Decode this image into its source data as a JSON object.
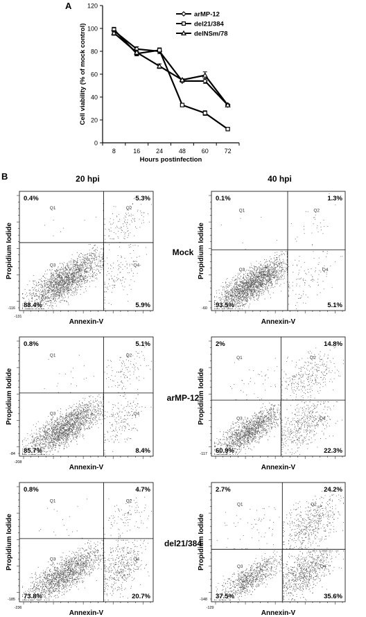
{
  "panel_a_label": "A",
  "panel_b_label": "B",
  "chart_data": [
    {
      "type": "line",
      "panel": "A",
      "title": "",
      "xlabel": "Hours postinfection",
      "ylabel": "Cell viability (% of mock control)",
      "categories": [
        "8",
        "16",
        "24",
        "48",
        "60",
        "72"
      ],
      "ylim": [
        0,
        120
      ],
      "yticks": [
        0,
        20,
        40,
        60,
        80,
        100,
        120
      ],
      "legend_position": "top-right",
      "series": [
        {
          "name": "arMP-12",
          "marker": "diamond",
          "values": [
            98,
            82,
            80,
            54,
            54,
            33
          ],
          "errors": [
            2,
            2,
            2,
            1,
            2,
            1
          ]
        },
        {
          "name": "del21/384",
          "marker": "square",
          "values": [
            99,
            78,
            81,
            33,
            26,
            12
          ],
          "errors": [
            2,
            2,
            2,
            1,
            2,
            1
          ]
        },
        {
          "name": "delNSm/78",
          "marker": "triangle",
          "values": [
            96,
            79,
            67,
            55,
            59,
            33
          ],
          "errors": [
            2,
            2,
            2,
            1,
            3,
            1
          ]
        }
      ]
    },
    {
      "type": "scatter",
      "panel": "B",
      "description_columns": [
        "20 hpi",
        "40 hpi"
      ],
      "row_labels": [
        "Mock",
        "arMP-12",
        "del21/384"
      ],
      "xlabel": "Annexin-V",
      "ylabel": "Propidium Iodide",
      "quadrant_names": [
        "Q1",
        "Q2",
        "Q3",
        "Q4"
      ],
      "plots": [
        {
          "row": "Mock",
          "column": "20 hpi",
          "quadrant_percent": {
            "Q1": "0.4%",
            "Q2": "5.3%",
            "Q3": "88.4%",
            "Q4": "5.9%"
          },
          "xmin_label": "-131",
          "ymin_label": "-116"
        },
        {
          "row": "Mock",
          "column": "40 hpi",
          "quadrant_percent": {
            "Q1": "0.1%",
            "Q2": "1.3%",
            "Q3": "93.5%",
            "Q4": "5.1%"
          },
          "xmin_label": "",
          "ymin_label": "-60"
        },
        {
          "row": "arMP-12",
          "column": "20 hpi",
          "quadrant_percent": {
            "Q1": "0.8%",
            "Q2": "5.1%",
            "Q3": "85.7%",
            "Q4": "8.4%"
          },
          "xmin_label": "-208",
          "ymin_label": "-84"
        },
        {
          "row": "arMP-12",
          "column": "40 hpi",
          "quadrant_percent": {
            "Q1": "2%",
            "Q2": "14.8%",
            "Q3": "60.9%",
            "Q4": "22.3%"
          },
          "xmin_label": "",
          "ymin_label": "-117"
        },
        {
          "row": "del21/384",
          "column": "20 hpi",
          "quadrant_percent": {
            "Q1": "0.8%",
            "Q2": "4.7%",
            "Q3": "73.8%",
            "Q4": "20.7%"
          },
          "xmin_label": "-236",
          "ymin_label": "-185"
        },
        {
          "row": "del21/384",
          "column": "40 hpi",
          "quadrant_percent": {
            "Q1": "2.7%",
            "Q2": "24.2%",
            "Q3": "37.5%",
            "Q4": "35.6%"
          },
          "xmin_label": "-129",
          "ymin_label": "-148"
        }
      ]
    }
  ]
}
